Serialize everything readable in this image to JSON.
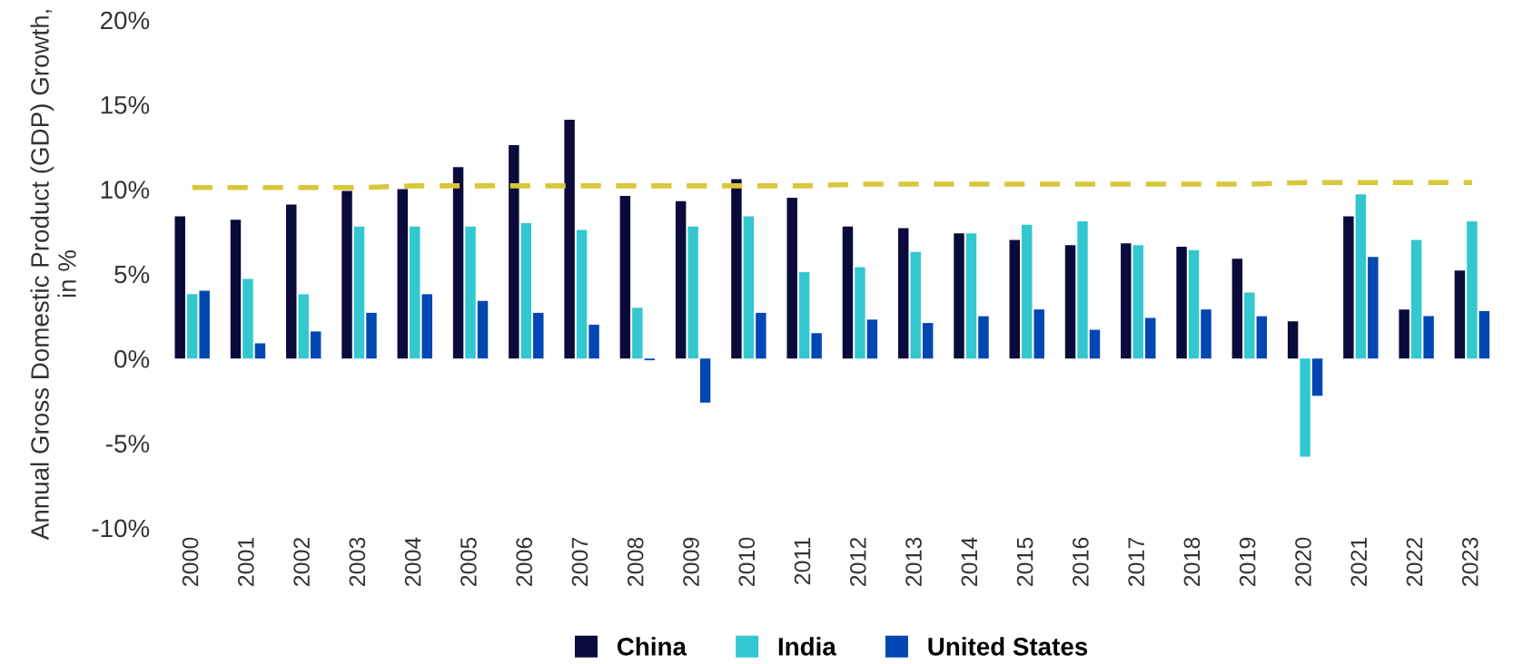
{
  "chart_data": {
    "type": "bar",
    "ylabel": "Annual Gross Domestic Product (GDP) Growth, in %",
    "categories": [
      "2000",
      "2001",
      "2002",
      "2003",
      "2004",
      "2005",
      "2006",
      "2007",
      "2008",
      "2009",
      "2010",
      "2011",
      "2012",
      "2013",
      "2014",
      "2015",
      "2016",
      "2017",
      "2018",
      "2019",
      "2020",
      "2021",
      "2022",
      "2023"
    ],
    "series": [
      {
        "name": "China",
        "color": "#0a0a3c",
        "values": [
          8.4,
          8.2,
          9.1,
          9.9,
          10.0,
          11.3,
          12.6,
          14.1,
          9.6,
          9.3,
          10.6,
          9.5,
          7.8,
          7.7,
          7.4,
          7.0,
          6.7,
          6.8,
          6.6,
          5.9,
          2.2,
          8.4,
          2.9,
          5.2
        ]
      },
      {
        "name": "India",
        "color": "#33c7cf",
        "values": [
          3.8,
          4.7,
          3.8,
          7.8,
          7.8,
          7.8,
          8.0,
          7.6,
          3.0,
          7.8,
          8.4,
          5.1,
          5.4,
          6.3,
          7.4,
          7.9,
          8.1,
          6.7,
          6.4,
          3.9,
          -5.8,
          9.7,
          7.0,
          8.1
        ]
      },
      {
        "name": "United States",
        "color": "#0047b3",
        "values": [
          4.0,
          0.9,
          1.6,
          2.7,
          3.8,
          3.4,
          2.7,
          2.0,
          -0.1,
          -2.6,
          2.7,
          1.5,
          2.3,
          2.1,
          2.5,
          2.9,
          1.7,
          2.4,
          2.9,
          2.5,
          -2.2,
          6.0,
          2.5,
          2.8
        ]
      },
      {
        "type": "line",
        "color": "#d9c63a",
        "line_style": "dashed",
        "values": [
          10.1,
          10.1,
          10.1,
          10.1,
          10.2,
          10.2,
          10.2,
          10.2,
          10.2,
          10.2,
          10.2,
          10.2,
          10.3,
          10.3,
          10.3,
          10.3,
          10.3,
          10.3,
          10.3,
          10.3,
          10.4,
          10.4,
          10.4,
          10.4
        ]
      }
    ],
    "ylim": [
      -10,
      20
    ],
    "yticks": [
      {
        "value": -10,
        "label": "-10%"
      },
      {
        "value": -5,
        "label": "-5%"
      },
      {
        "value": 0,
        "label": "0%"
      },
      {
        "value": 5,
        "label": "5%"
      },
      {
        "value": 10,
        "label": "10%"
      },
      {
        "value": 15,
        "label": "15%"
      },
      {
        "value": 20,
        "label": "20%"
      }
    ],
    "grid": false,
    "legend": "bottom"
  }
}
